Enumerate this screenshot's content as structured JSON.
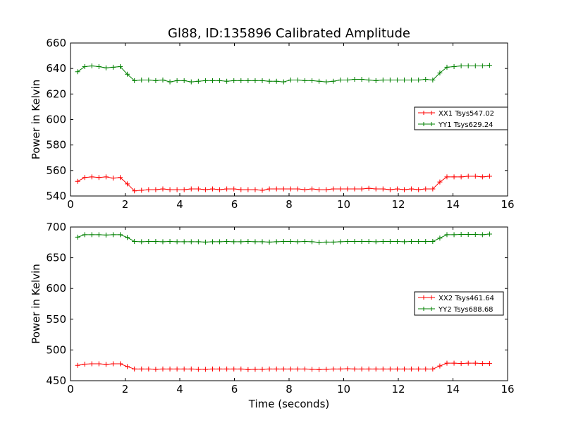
{
  "figure": {
    "title": "Gl88, ID:135896 Calibrated Amplitude",
    "xlabel": "Time (seconds)"
  },
  "chart_data": [
    {
      "type": "line",
      "title": "Gl88, ID:135896 Calibrated Amplitude",
      "xlabel": "",
      "ylabel": "Power in Kelvin",
      "xlim": [
        0,
        16
      ],
      "ylim": [
        540,
        660
      ],
      "xticks": [
        0,
        2,
        4,
        6,
        8,
        10,
        12,
        14,
        16
      ],
      "yticks": [
        540,
        560,
        580,
        600,
        620,
        640,
        660
      ],
      "grid": false,
      "legend": "center-right",
      "x": [
        0.26,
        0.52,
        0.78,
        1.04,
        1.3,
        1.56,
        1.82,
        2.08,
        2.34,
        2.6,
        2.86,
        3.12,
        3.38,
        3.64,
        3.9,
        4.16,
        4.42,
        4.68,
        4.94,
        5.2,
        5.46,
        5.72,
        5.98,
        6.24,
        6.5,
        6.76,
        7.02,
        7.28,
        7.54,
        7.8,
        8.06,
        8.32,
        8.58,
        8.84,
        9.1,
        9.36,
        9.62,
        9.88,
        10.14,
        10.4,
        10.66,
        10.92,
        11.18,
        11.44,
        11.7,
        11.96,
        12.22,
        12.48,
        12.74,
        13.0,
        13.26,
        13.52,
        13.78,
        14.04,
        14.3,
        14.56,
        14.82,
        15.08,
        15.34
      ],
      "series": [
        {
          "name": "XX1 Tsys547.02",
          "color": "#ff0000",
          "values": [
            551.5,
            554.5,
            555.0,
            554.5,
            555.0,
            554.0,
            554.5,
            549.5,
            544.0,
            544.5,
            545.0,
            545.0,
            545.5,
            545.0,
            545.0,
            545.0,
            545.5,
            545.5,
            545.0,
            545.5,
            545.0,
            545.5,
            545.5,
            545.0,
            545.0,
            545.0,
            544.5,
            545.5,
            545.5,
            545.5,
            545.5,
            545.5,
            545.0,
            545.5,
            545.0,
            545.0,
            545.5,
            545.5,
            545.5,
            545.5,
            545.5,
            546.0,
            545.5,
            545.5,
            545.0,
            545.5,
            545.0,
            545.5,
            545.0,
            545.5,
            545.5,
            551.0,
            555.0,
            555.0,
            555.0,
            555.5,
            555.5,
            555.0,
            555.5
          ]
        },
        {
          "name": "YY1 Tsys629.24",
          "color": "#008000",
          "values": [
            637.5,
            641.5,
            642.0,
            641.5,
            640.5,
            641.0,
            641.5,
            635.5,
            630.5,
            631.0,
            631.0,
            630.5,
            631.0,
            629.5,
            630.5,
            630.5,
            629.5,
            630.0,
            630.5,
            630.5,
            630.5,
            630.0,
            630.5,
            630.5,
            630.5,
            630.5,
            630.5,
            630.0,
            630.0,
            629.5,
            631.0,
            631.0,
            630.5,
            630.5,
            630.0,
            629.5,
            630.0,
            631.0,
            631.0,
            631.5,
            631.5,
            631.0,
            630.5,
            631.0,
            631.0,
            631.0,
            631.0,
            631.0,
            631.0,
            631.5,
            631.0,
            636.5,
            641.0,
            641.5,
            642.0,
            642.0,
            642.0,
            642.0,
            642.5
          ]
        }
      ]
    },
    {
      "type": "line",
      "title": "",
      "xlabel": "Time (seconds)",
      "ylabel": "Power in Kelvin",
      "xlim": [
        0,
        16
      ],
      "ylim": [
        450,
        700
      ],
      "xticks": [
        0,
        2,
        4,
        6,
        8,
        10,
        12,
        14,
        16
      ],
      "yticks": [
        450,
        500,
        550,
        600,
        650,
        700
      ],
      "grid": false,
      "legend": "center-right",
      "x": [
        0.26,
        0.52,
        0.78,
        1.04,
        1.3,
        1.56,
        1.82,
        2.08,
        2.34,
        2.6,
        2.86,
        3.12,
        3.38,
        3.64,
        3.9,
        4.16,
        4.42,
        4.68,
        4.94,
        5.2,
        5.46,
        5.72,
        5.98,
        6.24,
        6.5,
        6.76,
        7.02,
        7.28,
        7.54,
        7.8,
        8.06,
        8.32,
        8.58,
        8.84,
        9.1,
        9.36,
        9.62,
        9.88,
        10.14,
        10.4,
        10.66,
        10.92,
        11.18,
        11.44,
        11.7,
        11.96,
        12.22,
        12.48,
        12.74,
        13.0,
        13.26,
        13.52,
        13.78,
        14.04,
        14.3,
        14.56,
        14.82,
        15.08,
        15.34
      ],
      "series": [
        {
          "name": "XX2 Tsys461.64",
          "color": "#ff0000",
          "values": [
            475.0,
            477.0,
            477.5,
            477.5,
            476.5,
            477.5,
            477.5,
            473.0,
            469.0,
            469.0,
            469.0,
            468.5,
            469.0,
            469.0,
            469.0,
            469.0,
            469.0,
            468.5,
            468.5,
            469.0,
            469.0,
            469.0,
            469.0,
            469.0,
            468.0,
            468.5,
            468.5,
            469.0,
            469.0,
            469.0,
            469.0,
            469.0,
            469.0,
            468.5,
            468.0,
            468.5,
            469.0,
            469.0,
            469.5,
            469.0,
            469.0,
            469.0,
            469.0,
            469.0,
            469.0,
            469.0,
            469.0,
            469.0,
            469.0,
            469.0,
            469.0,
            474.0,
            478.5,
            478.5,
            478.0,
            478.5,
            478.5,
            478.0,
            478.0
          ]
        },
        {
          "name": "YY2 Tsys688.68",
          "color": "#008000",
          "values": [
            683.5,
            687.5,
            687.5,
            687.5,
            687.0,
            687.5,
            687.5,
            683.0,
            676.5,
            676.0,
            676.5,
            676.5,
            676.0,
            676.5,
            676.0,
            676.0,
            676.0,
            676.0,
            675.5,
            676.0,
            676.0,
            676.5,
            676.0,
            676.0,
            676.5,
            676.0,
            676.0,
            675.5,
            676.0,
            676.5,
            676.5,
            676.0,
            676.5,
            676.0,
            675.0,
            675.5,
            675.5,
            676.0,
            676.5,
            676.5,
            676.5,
            676.5,
            676.0,
            676.5,
            676.5,
            676.5,
            676.0,
            676.5,
            676.5,
            676.5,
            676.5,
            682.0,
            687.5,
            687.5,
            688.0,
            688.0,
            688.0,
            687.5,
            688.5
          ]
        }
      ]
    }
  ]
}
